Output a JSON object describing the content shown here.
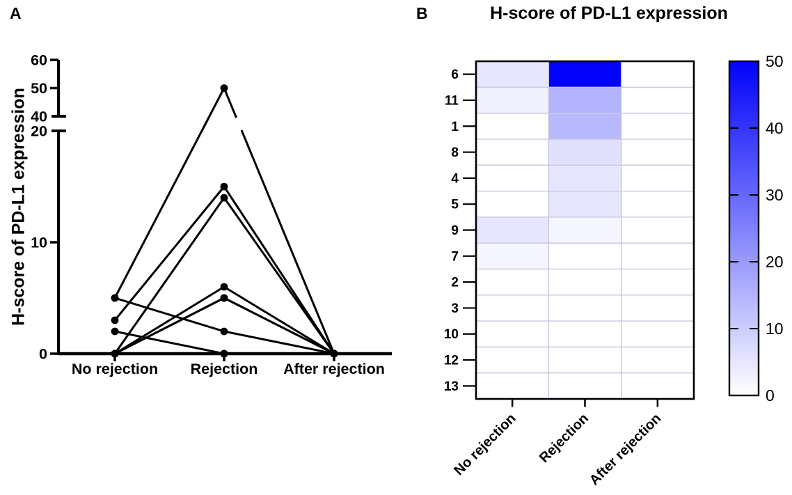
{
  "figure": {
    "background_color": "#ffffff",
    "ink_color": "#000000"
  },
  "chart_data": [
    {
      "type": "line",
      "panel_label": "A",
      "title": "",
      "xlabel": "",
      "ylabel": "H-score of PD-L1 expression",
      "categories": [
        "No rejection",
        "Rejection",
        "After rejection"
      ],
      "yticks_lower": [
        0,
        10,
        20
      ],
      "yticks_upper": [
        40,
        50,
        60
      ],
      "y_break": {
        "lower_range": [
          0,
          20
        ],
        "upper_range": [
          40,
          60
        ]
      },
      "line_color": "#000000",
      "marker": "filled-circle",
      "series": [
        {
          "name": "6",
          "values": [
            5,
            50,
            0
          ]
        },
        {
          "name": "11",
          "values": [
            3,
            15,
            0
          ]
        },
        {
          "name": "1",
          "values": [
            0,
            14,
            0
          ]
        },
        {
          "name": "8",
          "values": [
            0,
            6,
            0
          ]
        },
        {
          "name": "4",
          "values": [
            0,
            5,
            0
          ]
        },
        {
          "name": "5",
          "values": [
            0,
            5,
            0
          ]
        },
        {
          "name": "9",
          "values": [
            5,
            2,
            0
          ]
        },
        {
          "name": "7",
          "values": [
            2,
            0,
            0
          ]
        },
        {
          "name": "2",
          "values": [
            0,
            0,
            0
          ]
        },
        {
          "name": "3",
          "values": [
            0,
            0,
            0
          ]
        },
        {
          "name": "10",
          "values": [
            0,
            0,
            0
          ]
        },
        {
          "name": "12",
          "values": [
            0,
            0,
            0
          ]
        },
        {
          "name": "13",
          "values": [
            0,
            0,
            0
          ]
        }
      ]
    },
    {
      "type": "heatmap",
      "panel_label": "B",
      "title": "H-score of  PD-L1 expression",
      "rows": [
        "6",
        "11",
        "1",
        "8",
        "4",
        "5",
        "9",
        "7",
        "2",
        "3",
        "10",
        "12",
        "13"
      ],
      "columns": [
        "No rejection",
        "Rejection",
        "After rejection"
      ],
      "values": [
        [
          5,
          50,
          0
        ],
        [
          3,
          15,
          0
        ],
        [
          0,
          14,
          0
        ],
        [
          0,
          6,
          0
        ],
        [
          0,
          5,
          0
        ],
        [
          0,
          5,
          0
        ],
        [
          5,
          2,
          0
        ],
        [
          2,
          0,
          0
        ],
        [
          0,
          0,
          0
        ],
        [
          0,
          0,
          0
        ],
        [
          0,
          0,
          0
        ],
        [
          0,
          0,
          0
        ],
        [
          0,
          0,
          0
        ]
      ],
      "colorbar": {
        "min": 0,
        "max": 50,
        "ticks": [
          0,
          10,
          20,
          30,
          40,
          50
        ],
        "min_color": "#ffffff",
        "max_color": "#0202fa"
      },
      "grid_color": "#c7c7e0",
      "border_color": "#000000"
    }
  ]
}
